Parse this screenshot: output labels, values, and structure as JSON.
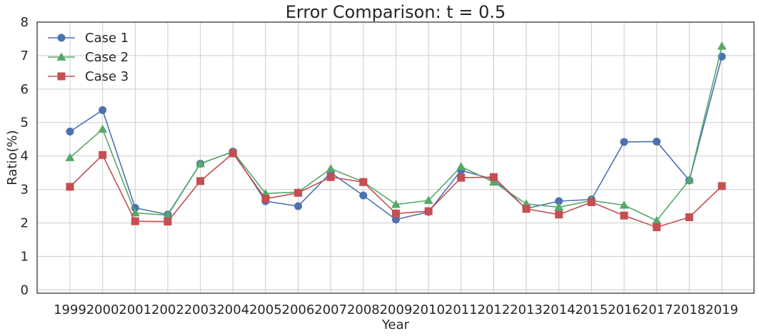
{
  "chart_data": {
    "type": "line",
    "title": "Error Comparison: t = 0.5",
    "xlabel": "Year",
    "ylabel": "Ratio(%)",
    "ylim": [
      -0.1,
      8
    ],
    "yticks": [
      0,
      1,
      2,
      3,
      4,
      5,
      6,
      7,
      8
    ],
    "grid": true,
    "legend_position": "top-left",
    "categories": [
      "1999",
      "2000",
      "2001",
      "2002",
      "2003",
      "2004",
      "2005",
      "2006",
      "2007",
      "2008",
      "2009",
      "2010",
      "2011",
      "2012",
      "2013",
      "2014",
      "2015",
      "2016",
      "2017",
      "2018",
      "2019"
    ],
    "series": [
      {
        "name": "Case 1",
        "color": "#4c72b0",
        "marker": "circle",
        "values": [
          4.73,
          5.37,
          2.45,
          2.25,
          3.77,
          4.13,
          2.65,
          2.5,
          3.5,
          2.82,
          2.1,
          2.33,
          3.57,
          3.3,
          2.43,
          2.65,
          2.7,
          4.42,
          4.43,
          3.27,
          6.97
        ]
      },
      {
        "name": "Case 2",
        "color": "#55a868",
        "marker": "triangle",
        "values": [
          3.95,
          4.8,
          2.3,
          2.23,
          3.77,
          4.13,
          2.88,
          2.92,
          3.62,
          3.23,
          2.55,
          2.67,
          3.68,
          3.22,
          2.57,
          2.47,
          2.67,
          2.53,
          2.07,
          3.28,
          7.28
        ]
      },
      {
        "name": "Case 3",
        "color": "#c44e52",
        "marker": "square",
        "values": [
          3.08,
          4.03,
          2.05,
          2.04,
          3.25,
          4.08,
          2.72,
          2.9,
          3.37,
          3.22,
          2.28,
          2.35,
          3.35,
          3.37,
          2.42,
          2.25,
          2.62,
          2.22,
          1.87,
          2.17,
          3.1
        ]
      }
    ]
  }
}
